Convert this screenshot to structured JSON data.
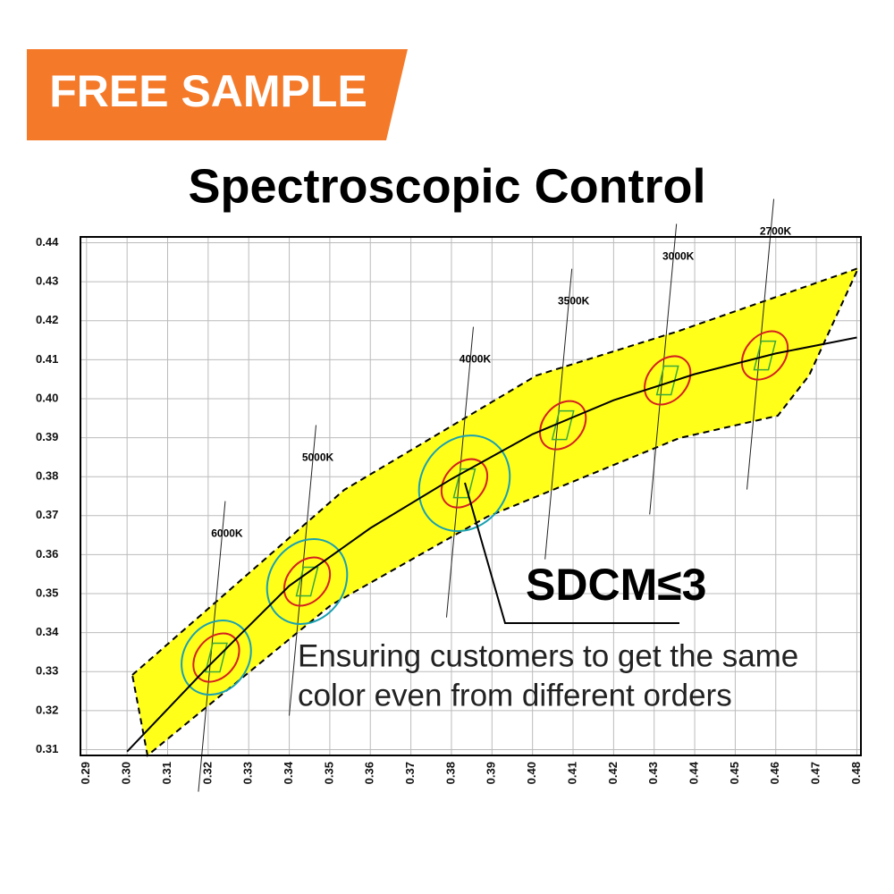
{
  "chart_data": {
    "type": "line",
    "badge": "FREE SAMPLE",
    "title": "Spectroscopic Control",
    "annotation": "SDCM≤3",
    "caption": [
      "Ensuring customers to get the same",
      "color even from different orders"
    ],
    "xlim": [
      0.2885,
      0.481
    ],
    "ylim": [
      0.3085,
      0.4415
    ],
    "xticks": [
      0.29,
      {
        "value": 0.3,
        "label": "0.30"
      },
      0.31,
      0.32,
      0.33,
      0.34,
      0.35,
      0.36,
      0.37,
      0.38,
      0.39,
      {
        "value": 0.4,
        "label": "0.40"
      },
      0.41,
      0.42,
      0.43,
      0.44,
      0.45,
      0.46,
      0.47,
      0.48
    ],
    "yticks": [
      0.31,
      0.32,
      0.33,
      0.34,
      0.35,
      0.36,
      0.37,
      0.38,
      0.39,
      {
        "value": 0.4,
        "label": "0.40"
      },
      0.41,
      0.42,
      0.43,
      0.44
    ],
    "grid": true,
    "series": [
      {
        "color": "#000000",
        "x": [
          0.3,
          0.32,
          0.34,
          0.36,
          0.38,
          0.4,
          0.42,
          0.44,
          0.46,
          0.48
        ],
        "values": [
          0.3095,
          0.3313,
          0.352,
          0.3668,
          0.3794,
          0.3909,
          0.3996,
          0.4063,
          0.4116,
          0.4157
        ]
      }
    ],
    "regions": [
      {
        "label": "6000K",
        "x": 0.322,
        "y": 0.3336
      },
      {
        "label": "5000K",
        "x": 0.3444,
        "y": 0.3531
      },
      {
        "label": "4000K",
        "x": 0.3832,
        "y": 0.3783
      },
      {
        "label": "3500K",
        "x": 0.4075,
        "y": 0.3932
      },
      {
        "label": "3000K",
        "x": 0.4333,
        "y": 0.4047
      },
      {
        "label": "2700K",
        "x": 0.4573,
        "y": 0.4111
      }
    ]
  }
}
